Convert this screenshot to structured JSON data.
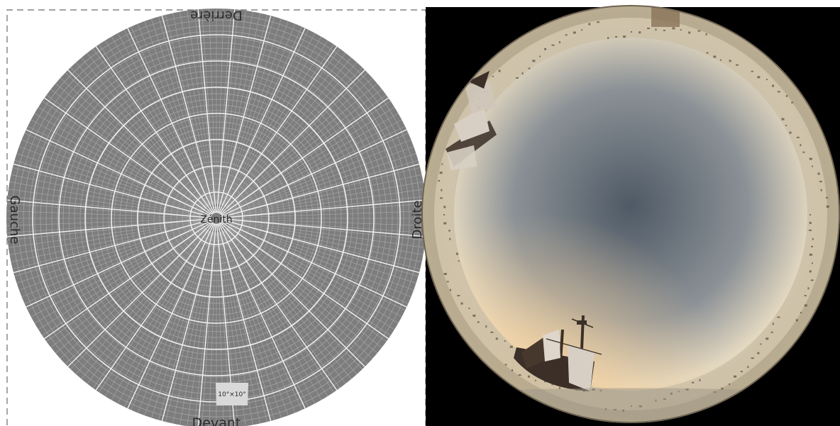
{
  "left_panel": {
    "zenith_label": "Zénith",
    "top_label": "Derrière",
    "bottom_label": "Devant",
    "left_label": "Gauche",
    "right_label": "Droite",
    "cell_label": "10°×10°",
    "colors": {
      "disc": "#7d7d7d",
      "minor_grid": "#a9a9a9",
      "major_grid": "#f2f2f2",
      "highlight_cell": "#d9d9d9",
      "frame_dash": "#6b6b6b"
    }
  },
  "right_panel": {
    "colors": {
      "background": "#000000",
      "sky_center": "#4f5a66",
      "sky_mid": "#8b9196",
      "sky_edge": "#e9dcc0",
      "horizon_glow": "#f3d3a6",
      "ship": "#3b2f27",
      "sail": "#d8cfc4"
    }
  }
}
